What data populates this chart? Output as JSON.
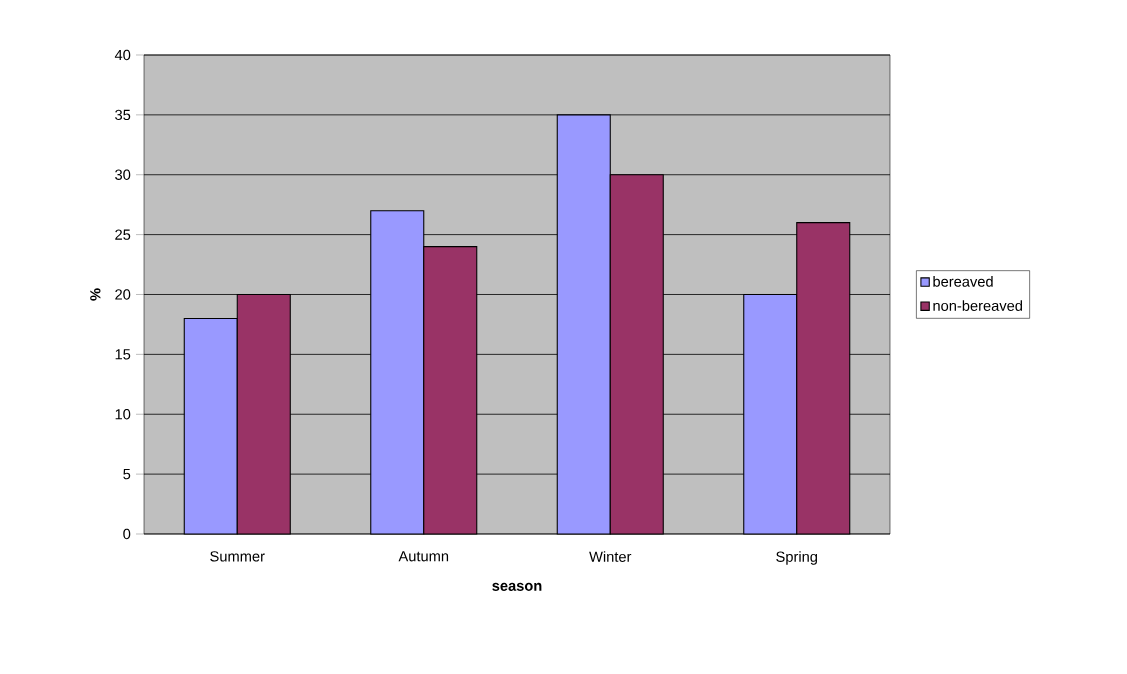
{
  "chart_data": {
    "type": "bar",
    "xlabel": "season",
    "ylabel": "%",
    "categories": [
      "Summer",
      "Autumn",
      "Winter",
      "Spring"
    ],
    "series": [
      {
        "name": "bereaved",
        "color": "#9999ff",
        "values": [
          18,
          27,
          35,
          20
        ]
      },
      {
        "name": "non-bereaved",
        "color": "#993366",
        "values": [
          20,
          24,
          30,
          26
        ]
      }
    ],
    "ylim": [
      0,
      40
    ],
    "yticks": [
      0,
      5,
      10,
      15,
      20,
      25,
      30,
      35,
      40
    ],
    "grid": "y",
    "legend": "right"
  }
}
